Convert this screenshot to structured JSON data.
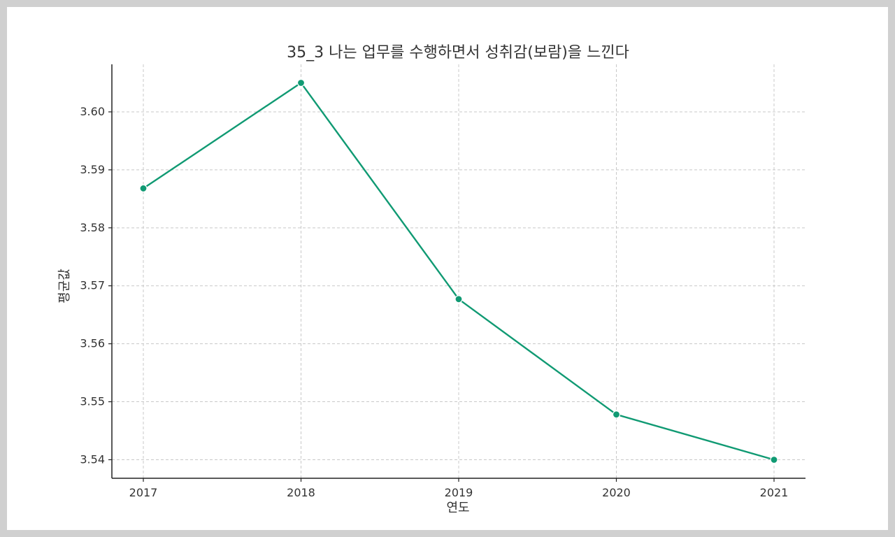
{
  "chart_data": {
    "type": "line",
    "title": "35_3 나는 업무를 수행하면서 성취감(보람)을 느낀다",
    "xlabel": "연도",
    "ylabel": "평균값",
    "x": [
      "2017",
      "2018",
      "2019",
      "2020",
      "2021"
    ],
    "series": [
      {
        "values": [
          3.5868,
          3.605,
          3.5677,
          3.5478,
          3.54
        ]
      }
    ],
    "ylim": [
      3.5368,
      3.6082
    ],
    "yticks": [
      "3.54",
      "3.55",
      "3.56",
      "3.57",
      "3.58",
      "3.59",
      "3.60"
    ],
    "grid": true,
    "line_color": "#109a73",
    "marker": "circle"
  }
}
